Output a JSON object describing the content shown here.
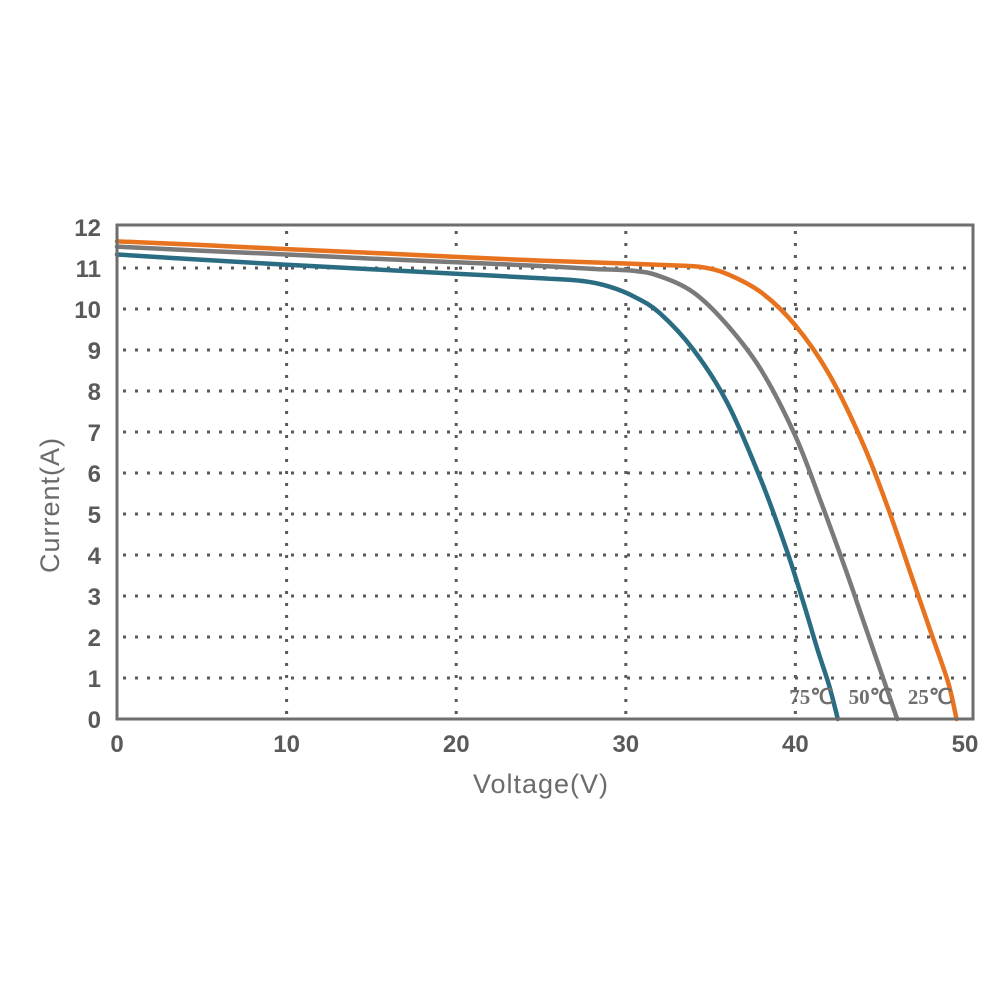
{
  "chart_data": {
    "type": "line",
    "xlabel": "Voltage(V)",
    "ylabel": "Current(A)",
    "xlim": [
      0,
      50
    ],
    "ylim": [
      0,
      12
    ],
    "x_ticks": [
      "0",
      "10",
      "20",
      "30",
      "40",
      "50"
    ],
    "y_ticks": [
      "0",
      "1",
      "2",
      "3",
      "4",
      "5",
      "6",
      "7",
      "8",
      "9",
      "10",
      "11",
      "12"
    ],
    "grid": true,
    "series": [
      {
        "name": "25℃",
        "color": "#e8731e",
        "points": [
          [
            0,
            11.65
          ],
          [
            5,
            11.56
          ],
          [
            10,
            11.46
          ],
          [
            15,
            11.37
          ],
          [
            20,
            11.27
          ],
          [
            25,
            11.18
          ],
          [
            30,
            11.11
          ],
          [
            33,
            11.06
          ],
          [
            34.5,
            11.02
          ],
          [
            36,
            10.85
          ],
          [
            38,
            10.4
          ],
          [
            40,
            9.6
          ],
          [
            42,
            8.4
          ],
          [
            44,
            6.7
          ],
          [
            45.5,
            5.1
          ],
          [
            47,
            3.3
          ],
          [
            48,
            2.1
          ],
          [
            49,
            0.9
          ],
          [
            49.5,
            0
          ]
        ]
      },
      {
        "name": "50℃",
        "color": "#7a7a7a",
        "points": [
          [
            0,
            11.52
          ],
          [
            5,
            11.42
          ],
          [
            10,
            11.33
          ],
          [
            15,
            11.23
          ],
          [
            20,
            11.14
          ],
          [
            25,
            11.05
          ],
          [
            28,
            10.98
          ],
          [
            30.5,
            10.93
          ],
          [
            32,
            10.8
          ],
          [
            34,
            10.4
          ],
          [
            36,
            9.6
          ],
          [
            38,
            8.5
          ],
          [
            40,
            6.9
          ],
          [
            41.5,
            5.3
          ],
          [
            43,
            3.6
          ],
          [
            44,
            2.4
          ],
          [
            45,
            1.2
          ],
          [
            46,
            0
          ]
        ]
      },
      {
        "name": "75℃",
        "color": "#2a6d82",
        "points": [
          [
            0,
            11.33
          ],
          [
            5,
            11.2
          ],
          [
            10,
            11.08
          ],
          [
            15,
            10.97
          ],
          [
            20,
            10.86
          ],
          [
            25,
            10.75
          ],
          [
            27.5,
            10.68
          ],
          [
            29,
            10.55
          ],
          [
            30.5,
            10.3
          ],
          [
            32,
            9.9
          ],
          [
            34,
            9.0
          ],
          [
            36,
            7.7
          ],
          [
            38,
            5.8
          ],
          [
            39.5,
            4.1
          ],
          [
            40.5,
            2.8
          ],
          [
            41.3,
            1.7
          ],
          [
            42,
            0.8
          ],
          [
            42.5,
            0
          ]
        ]
      }
    ]
  }
}
